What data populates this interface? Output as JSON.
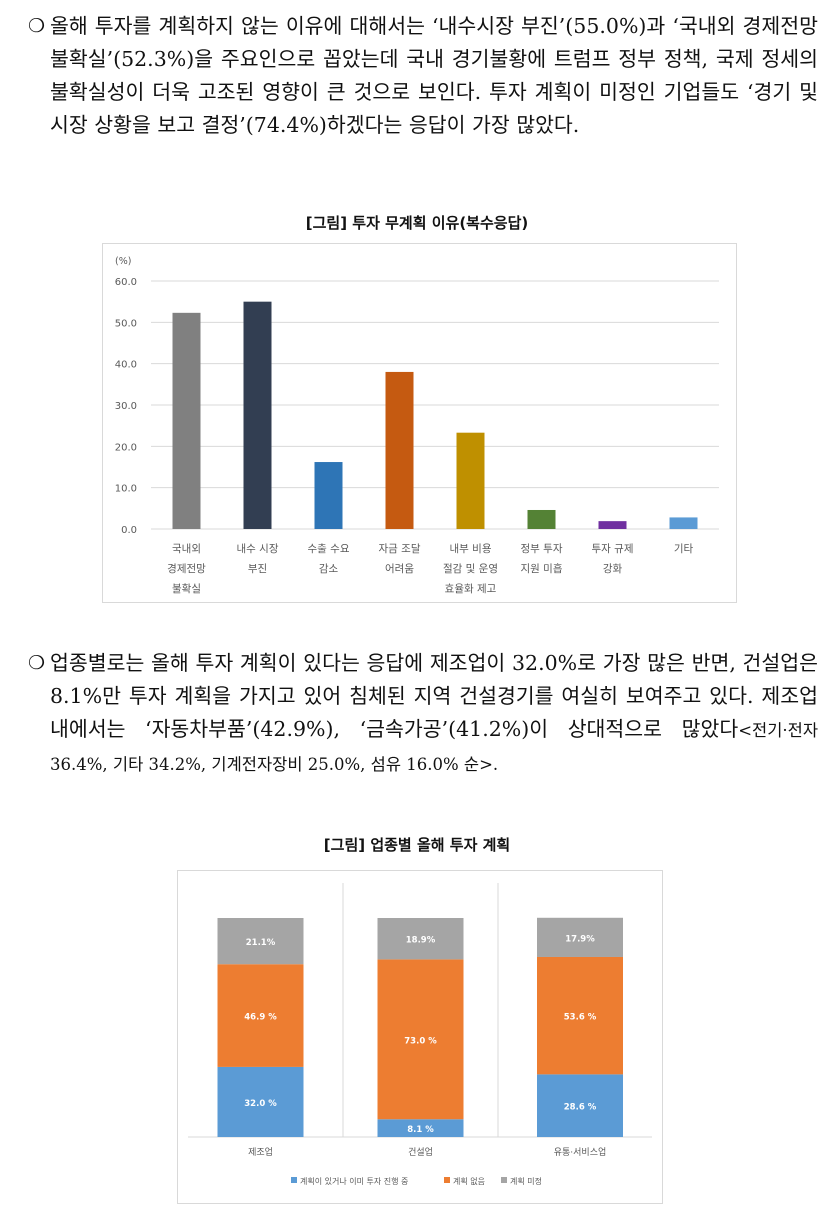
{
  "paragraph1": {
    "bullet": "❍",
    "text": "올해 투자를 계획하지 않는 이유에 대해서는 ‘내수시장 부진’(55.0%)과 ‘국내외 경제전망 불확실’(52.3%)을 주요인으로 꼽았는데 국내 경기불황에 트럼프 정부 정책, 국제 정세의 불확실성이 더욱 고조된 영향이 큰 것으로 보인다. 투자 계획이 미정인 기업들도 ‘경기 및 시장 상황을 보고 결정’(74.4%)하겠다는 응답이 가장 많았다."
  },
  "figure1": {
    "title": "[그림] 투자 무계획 이유(복수응답)",
    "unit_label": "(%)"
  },
  "paragraph2": {
    "bullet": "❍",
    "text": "업종별로는 올해 투자 계획이 있다는 응답에 제조업이 32.0%로 가장 많은 반면, 건설업은 8.1%만 투자 계획을 가지고 있어 침체된 지역 건설경기를 여실히 보여주고 있다. 제조업 내에서는 ‘자동차부품’(42.9%), ‘금속가공’(41.2%)이 상대적으로 많았다",
    "small_text": "<전기·전자 36.4%, 기타 34.2%, 기계전자장비 25.0%, 섬유 16.0% 순>."
  },
  "figure2": {
    "title": "[그림] 업종별 올해 투자 계획"
  },
  "chart_data": [
    {
      "type": "bar",
      "title": "[그림] 투자 무계획 이유(복수응답)",
      "ylabel": "(%)",
      "ylim": [
        0,
        60
      ],
      "yticks": [
        "0.0",
        "10.0",
        "20.0",
        "30.0",
        "40.0",
        "50.0",
        "60.0"
      ],
      "grid": true,
      "categories": [
        [
          "국내외",
          "경제전망",
          "불확실"
        ],
        [
          "내수 시장",
          "부진"
        ],
        [
          "수출 수요",
          "감소"
        ],
        [
          "자금 조달",
          "어려움"
        ],
        [
          "내부 비용",
          "절감 및 운영",
          "효율화 제고"
        ],
        [
          "정부 투자",
          "지원 미흡"
        ],
        [
          "투자 규제",
          "강화"
        ],
        [
          "기타"
        ]
      ],
      "values": [
        52.3,
        55.0,
        16.2,
        38.0,
        23.3,
        4.6,
        1.9,
        2.8
      ],
      "colors": [
        "#808080",
        "#323e52",
        "#2e75b6",
        "#c55a11",
        "#bf9000",
        "#548235",
        "#7030a0",
        "#5b9bd5"
      ]
    },
    {
      "type": "bar",
      "stacked": "100%",
      "title": "[그림] 업종별 올해 투자 계획",
      "categories": [
        "제조업",
        "건설업",
        "유통·서비스업"
      ],
      "series": [
        {
          "name": "계획이 있거나 이미 투자 진행 중",
          "color": "#5b9bd5",
          "values": [
            32.0,
            8.1,
            28.6
          ],
          "labels": [
            "32.0 %",
            "8.1 %",
            "28.6 %"
          ]
        },
        {
          "name": "계획 없음",
          "color": "#ed7d31",
          "values": [
            46.9,
            73.0,
            53.6
          ],
          "labels": [
            "46.9 %",
            "73.0 %",
            "53.6 %"
          ]
        },
        {
          "name": "계획 미정",
          "color": "#a5a5a5",
          "values": [
            21.1,
            18.9,
            17.9
          ],
          "labels": [
            "21.1%",
            "18.9%",
            "17.9%"
          ]
        }
      ],
      "legend": "bottom"
    }
  ]
}
